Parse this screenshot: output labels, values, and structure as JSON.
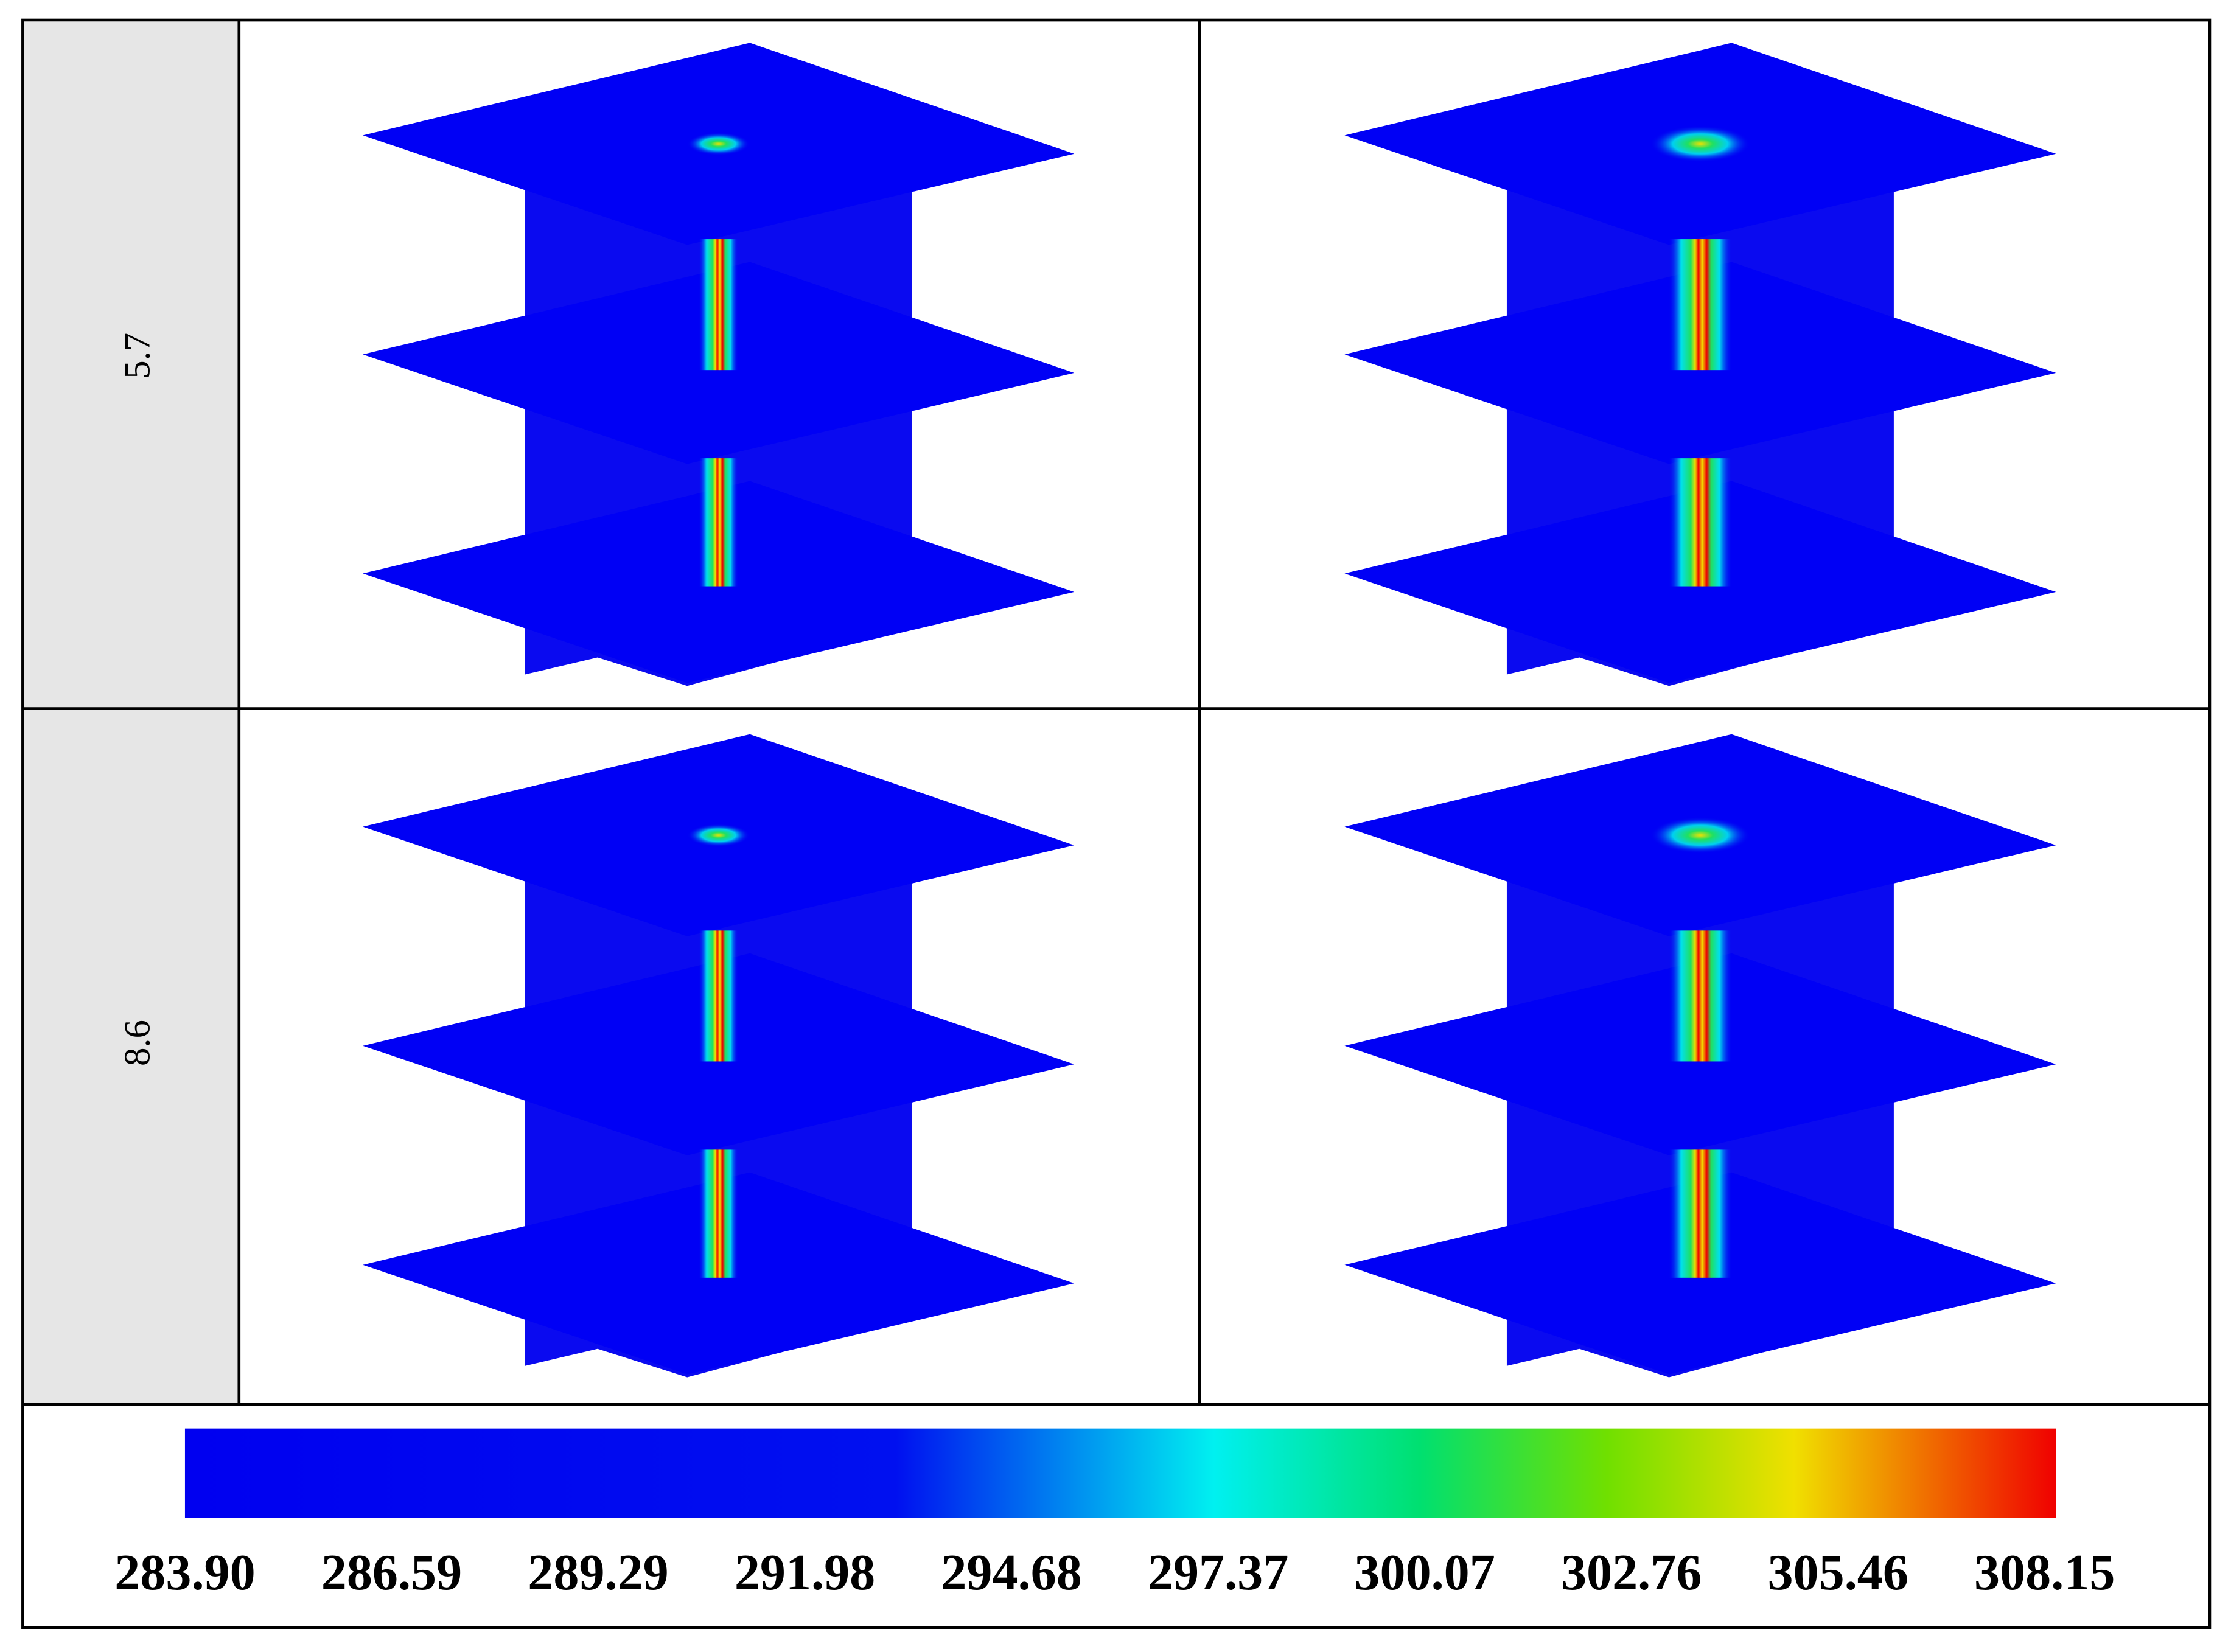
{
  "rows": [
    {
      "label": "5.7"
    },
    {
      "label": "8.6"
    }
  ],
  "colorbar": {
    "ticks": [
      "283.90",
      "286.59",
      "289.29",
      "291.98",
      "294.68",
      "297.37",
      "300.07",
      "302.76",
      "305.46",
      "308.15"
    ]
  }
}
